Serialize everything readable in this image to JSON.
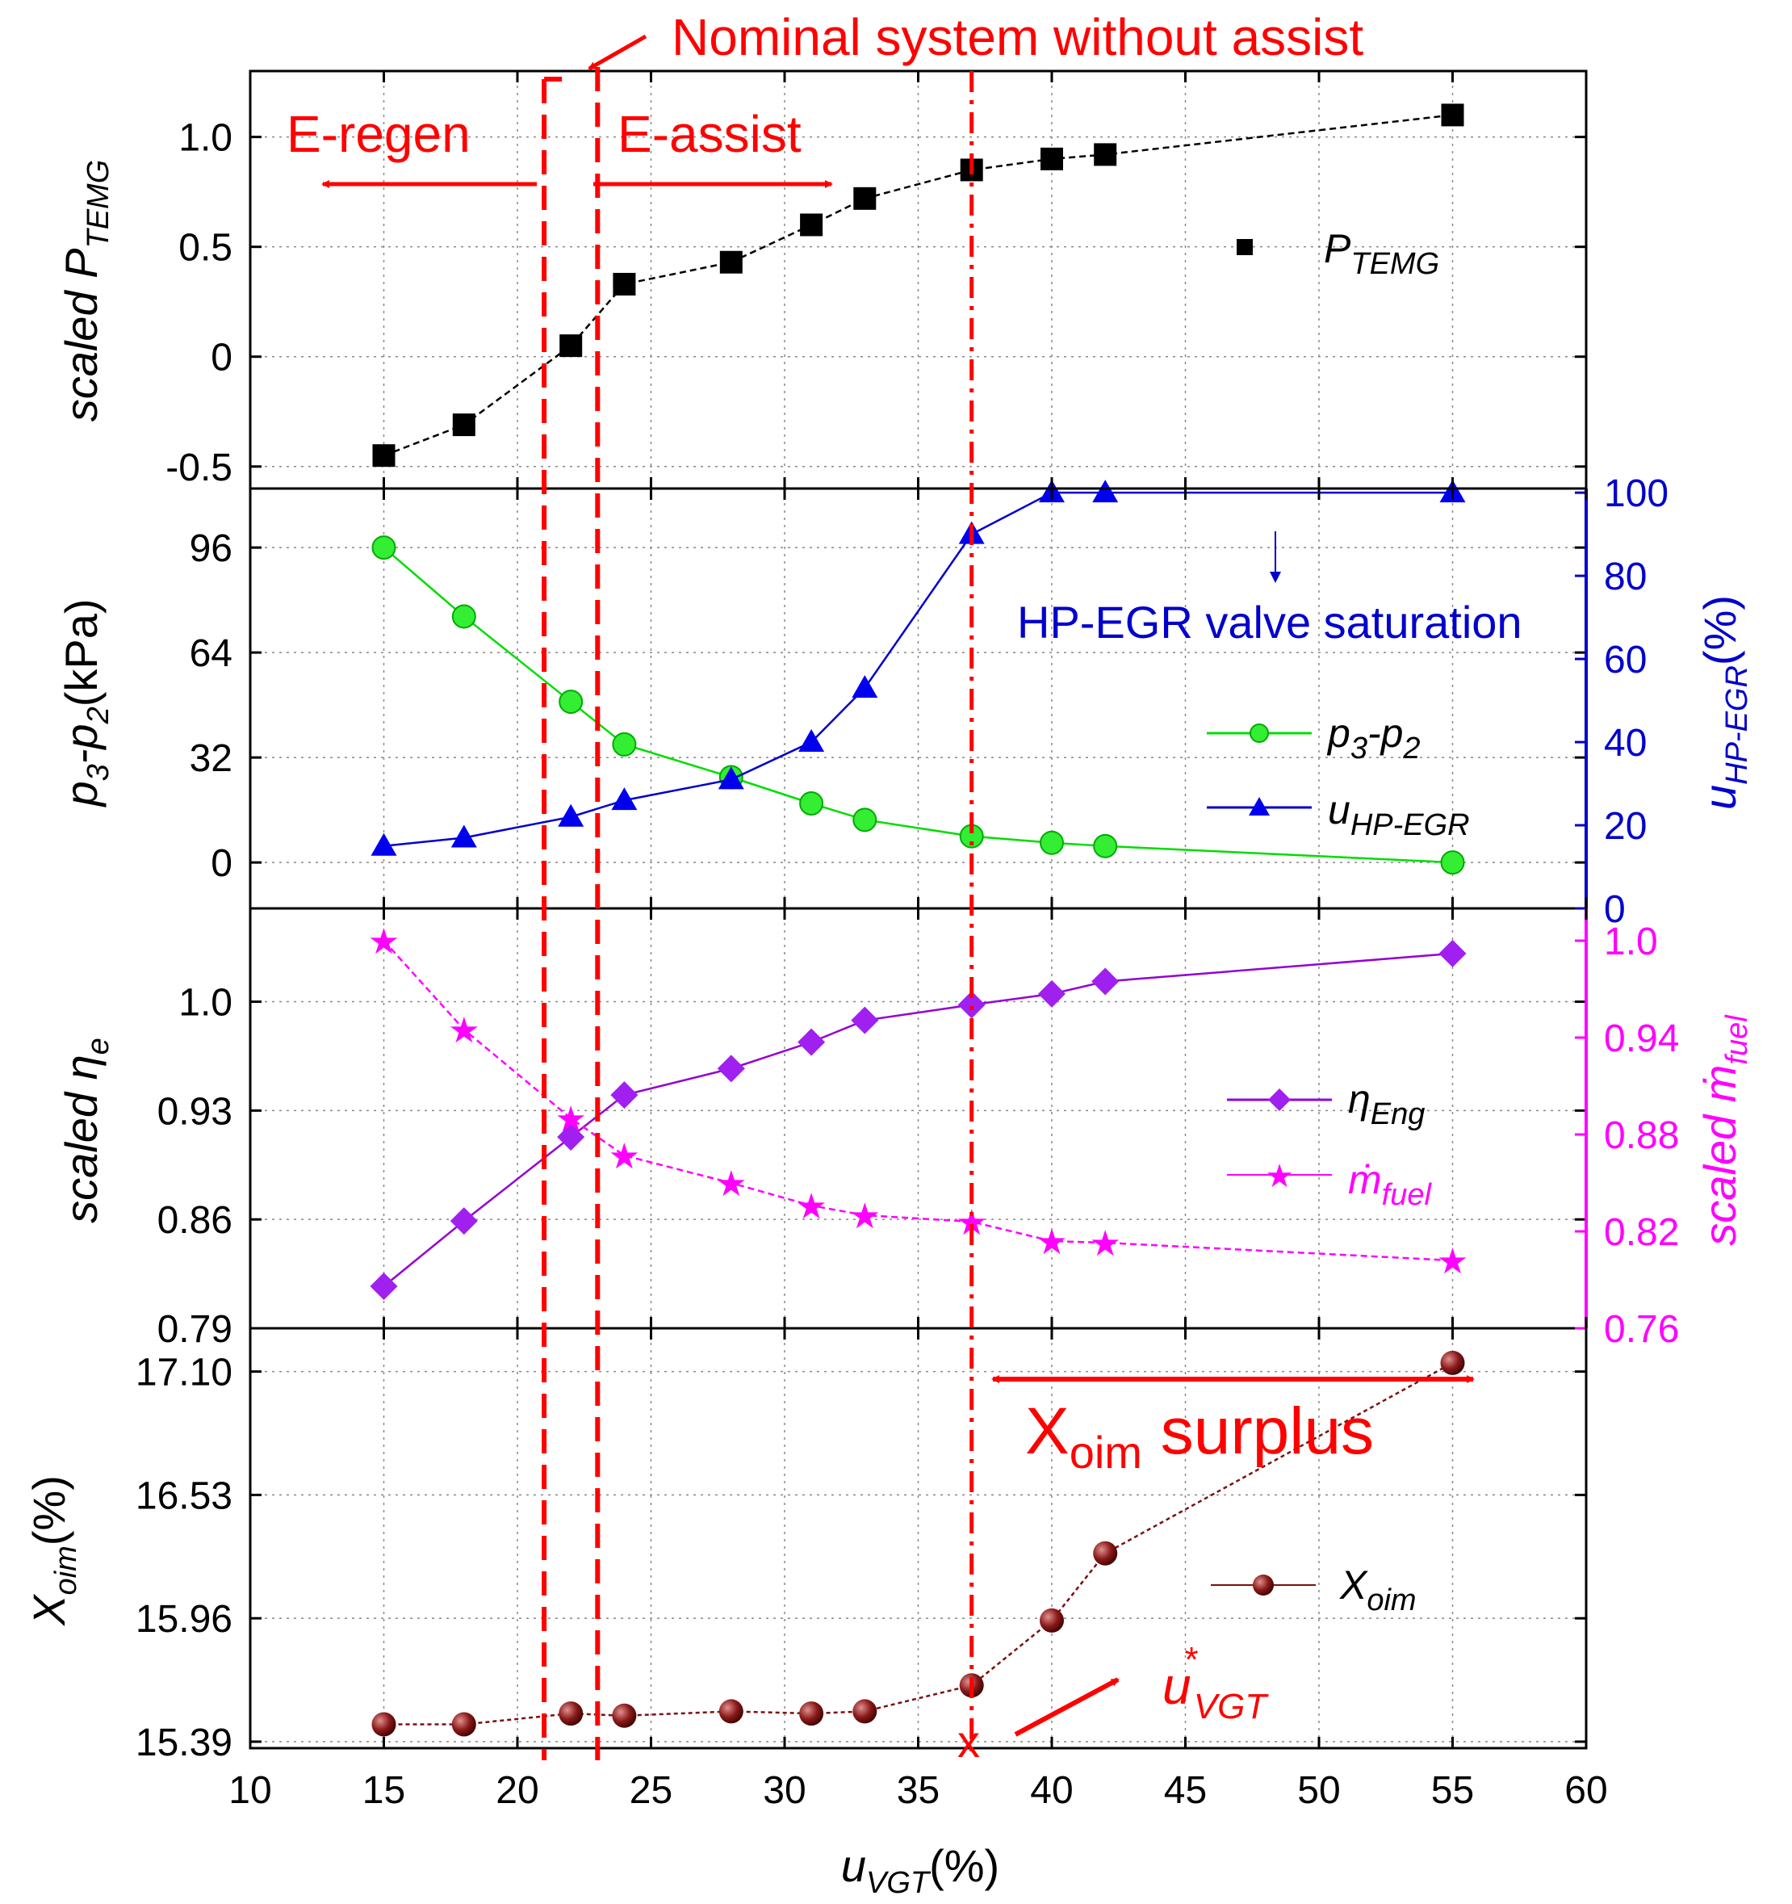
{
  "colors": {
    "ptemg": "#000000",
    "p3p2": "#00dd00",
    "uhpegr": "#0000cc",
    "eta": "#9400d3",
    "mfuel": "#ff00ff",
    "xoim": "#7a1010",
    "annotation": "#ff0000"
  },
  "annotations": {
    "nominal": "Nominal  system without assist",
    "e_regen": "E-regen",
    "e_assist": "E-assist",
    "hp_egr_saturation": "HP-EGR valve saturation",
    "surplus_main": "X",
    "surplus_sub": "oim",
    "surplus_tail": " surplus",
    "uvgt_star_main": "u",
    "uvgt_star_sub": "VGT",
    "uvgt_star_sup": "*",
    "x_marker": "x",
    "dot_marker": "."
  },
  "chart_data": {
    "type": "line",
    "x": [
      15,
      18,
      22,
      24,
      28,
      31,
      33,
      37,
      40,
      42,
      55
    ],
    "xlim": [
      10,
      60
    ],
    "xticks": [
      "10",
      "15",
      "20",
      "25",
      "30",
      "35",
      "40",
      "45",
      "50",
      "55",
      "60"
    ],
    "xlabel": {
      "main": "u",
      "sub": "VGT",
      "tail": "(%)"
    },
    "reference_lines": {
      "nominal_low": 21,
      "nominal_high": 23,
      "optimal": 37
    },
    "panels": [
      {
        "id": "ptemg",
        "ylabel": {
          "pre": "scaled P",
          "sub": "TEMG"
        },
        "ylim": [
          -0.6,
          1.3
        ],
        "yticks": [
          {
            "v": -0.5,
            "t": "-0.5"
          },
          {
            "v": 0,
            "t": "0"
          },
          {
            "v": 0.5,
            "t": "0.5"
          },
          {
            "v": 1.0,
            "t": "1.0"
          }
        ],
        "series": [
          {
            "name": "P",
            "sub": "TEMG",
            "marker": "square",
            "color": "#000000",
            "values": [
              -0.45,
              -0.31,
              0.05,
              0.33,
              0.43,
              0.6,
              0.72,
              0.85,
              0.9,
              0.92,
              1.1
            ]
          }
        ]
      },
      {
        "id": "p3p2",
        "ylabel": {
          "pre": "p",
          "sub1": "3",
          "mid": "-p",
          "sub2": "2",
          "tail": "(kPa)"
        },
        "ylim": [
          -14,
          114
        ],
        "yticks": [
          {
            "v": 0,
            "t": "0"
          },
          {
            "v": 32,
            "t": "32"
          },
          {
            "v": 64,
            "t": "64"
          },
          {
            "v": 96,
            "t": "96"
          }
        ],
        "right_ylabel": {
          "pre": "u",
          "sub": "HP-EGR",
          "tail": "(%)"
        },
        "right_ylim": [
          0,
          101
        ],
        "right_yticks": [
          {
            "v": 0,
            "t": "0"
          },
          {
            "v": 20,
            "t": "20"
          },
          {
            "v": 40,
            "t": "40"
          },
          {
            "v": 60,
            "t": "60"
          },
          {
            "v": 80,
            "t": "80"
          },
          {
            "v": 100,
            "t": "100"
          }
        ],
        "series": [
          {
            "name": "p",
            "sub1": "3",
            "mid": "-p",
            "sub2": "2",
            "marker": "circle",
            "color": "#00dd00",
            "axis": "left",
            "values": [
              96,
              75,
              49,
              36,
              26,
              18,
              13,
              8,
              6,
              5,
              0
            ]
          },
          {
            "name": "u",
            "sub": "HP-EGR",
            "marker": "triangle",
            "color": "#0000cc",
            "axis": "right",
            "values": [
              15,
              17,
              22,
              26,
              31,
              40,
              53,
              90,
              100,
              100,
              100
            ]
          }
        ]
      },
      {
        "id": "eta",
        "ylabel": {
          "pre": "scaled η",
          "sub": "e"
        },
        "ylim": [
          0.79,
          1.06
        ],
        "yticks": [
          {
            "v": 0.79,
            "t": "0.79"
          },
          {
            "v": 0.86,
            "t": "0.86"
          },
          {
            "v": 0.93,
            "t": "0.93"
          },
          {
            "v": 1.0,
            "t": "1.0"
          }
        ],
        "right_ylabel": {
          "pre": "scaled ṁ",
          "sub": "fuel"
        },
        "right_ylim": [
          0.76,
          1.02
        ],
        "right_yticks": [
          {
            "v": 0.76,
            "t": "0.76"
          },
          {
            "v": 0.82,
            "t": "0.82"
          },
          {
            "v": 0.88,
            "t": "0.88"
          },
          {
            "v": 0.94,
            "t": "0.94"
          },
          {
            "v": 1.0,
            "t": "1.0"
          }
        ],
        "series": [
          {
            "name": "η",
            "sub": "Eng",
            "marker": "diamond",
            "color": "#9400d3",
            "axis": "left",
            "values": [
              0.817,
              0.859,
              0.913,
              0.94,
              0.957,
              0.974,
              0.988,
              0.998,
              1.005,
              1.013,
              1.031
            ]
          },
          {
            "name": "ṁ",
            "sub": "fuel",
            "marker": "star",
            "color": "#ff00ff",
            "axis": "right",
            "values": [
              1.0,
              0.945,
              0.89,
              0.867,
              0.85,
              0.836,
              0.83,
              0.826,
              0.814,
              0.813,
              0.802
            ]
          }
        ]
      },
      {
        "id": "xoim",
        "ylabel": {
          "pre": "X",
          "sub": "oim",
          "tail": "(%)"
        },
        "ylim": [
          15.36,
          17.3
        ],
        "yticks": [
          {
            "v": 15.39,
            "t": "15.39"
          },
          {
            "v": 15.96,
            "t": "15.96"
          },
          {
            "v": 16.53,
            "t": "16.53"
          },
          {
            "v": 17.1,
            "t": "17.10"
          }
        ],
        "series": [
          {
            "name": "X",
            "sub": "oim",
            "marker": "ball",
            "color": "#7a1010",
            "values": [
              15.47,
              15.47,
              15.52,
              15.51,
              15.53,
              15.52,
              15.53,
              15.65,
              15.95,
              16.26,
              17.14
            ]
          }
        ]
      }
    ]
  }
}
